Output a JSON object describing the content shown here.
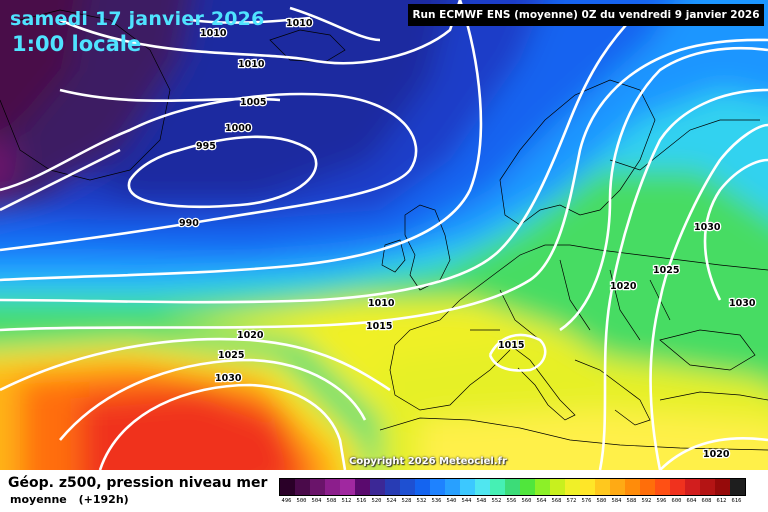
{
  "header": {
    "date": "samedi 17 janvier 2026",
    "local_time": "1:00 locale",
    "run_info": "Run ECMWF ENS (moyenne) 0Z du vendredi 9 janvier 2026"
  },
  "copyright": "Copyright 2026 Meteociel.fr",
  "footer": {
    "title": "Géop. z500, pression niveau mer",
    "subtitle": "moyenne",
    "lead": "(+192h)"
  },
  "isobar_labels": [
    "1010",
    "1010",
    "1010",
    "1005",
    "1000",
    "995",
    "990",
    "1010",
    "1015",
    "1020",
    "1025",
    "1030",
    "1015",
    "1020",
    "1025",
    "1030",
    "1030",
    "1020"
  ],
  "legend": {
    "ticks": [
      "496",
      "500",
      "504",
      "508",
      "512",
      "516",
      "520",
      "524",
      "528",
      "532",
      "536",
      "540",
      "544",
      "548",
      "552",
      "556",
      "560",
      "564",
      "568",
      "572",
      "576",
      "580",
      "584",
      "588",
      "592",
      "596",
      "600",
      "604",
      "608",
      "612",
      "616"
    ],
    "colors": [
      "#2a0028",
      "#4a0a4a",
      "#6a146a",
      "#8c1e8c",
      "#a028a0",
      "#5a0a6e",
      "#3c2896",
      "#283cb4",
      "#1e50d2",
      "#1464f0",
      "#1e82ff",
      "#28a0ff",
      "#3cc8ff",
      "#50e6f0",
      "#46f0b4",
      "#3cdc78",
      "#50e63c",
      "#8cf028",
      "#c8f01e",
      "#f0f028",
      "#ffe628",
      "#ffc81e",
      "#ffaa14",
      "#ff8c0a",
      "#ff6e0a",
      "#ff5014",
      "#f0321e",
      "#d21e1e",
      "#b41414",
      "#960a0a",
      "#1e1e1e"
    ]
  }
}
